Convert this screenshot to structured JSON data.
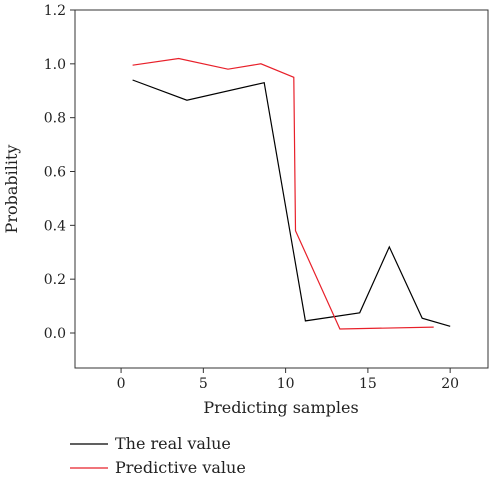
{
  "chart_data": {
    "type": "line",
    "xlabel": "Predicting samples",
    "ylabel": "Probability",
    "xlim": [
      -2.8,
      22.3
    ],
    "ylim": [
      -0.13,
      1.2
    ],
    "xticks": [
      0,
      5,
      10,
      15,
      20
    ],
    "yticks": [
      0.0,
      0.2,
      0.4,
      0.6,
      0.8,
      1.0,
      1.2
    ],
    "ytick_labels": [
      "0.0",
      "0.2",
      "0.4",
      "0.6",
      "0.8",
      "1.0",
      "1.2"
    ],
    "grid": false,
    "legend_placement": "bottom-left, below plot",
    "series": [
      {
        "name": "The real value",
        "color": "#000000",
        "x": [
          0.7,
          4,
          8.7,
          11.2,
          14.5,
          16.3,
          18.3,
          20
        ],
        "y": [
          0.94,
          0.865,
          0.93,
          0.045,
          0.075,
          0.32,
          0.055,
          0.025
        ]
      },
      {
        "name": "Predictive value",
        "color": "#e8202a",
        "x": [
          0.7,
          3.5,
          6.5,
          8.5,
          10.5,
          10.6,
          13.3,
          19
        ],
        "y": [
          0.995,
          1.02,
          0.98,
          1.0,
          0.95,
          0.38,
          0.015,
          0.022
        ]
      }
    ]
  }
}
